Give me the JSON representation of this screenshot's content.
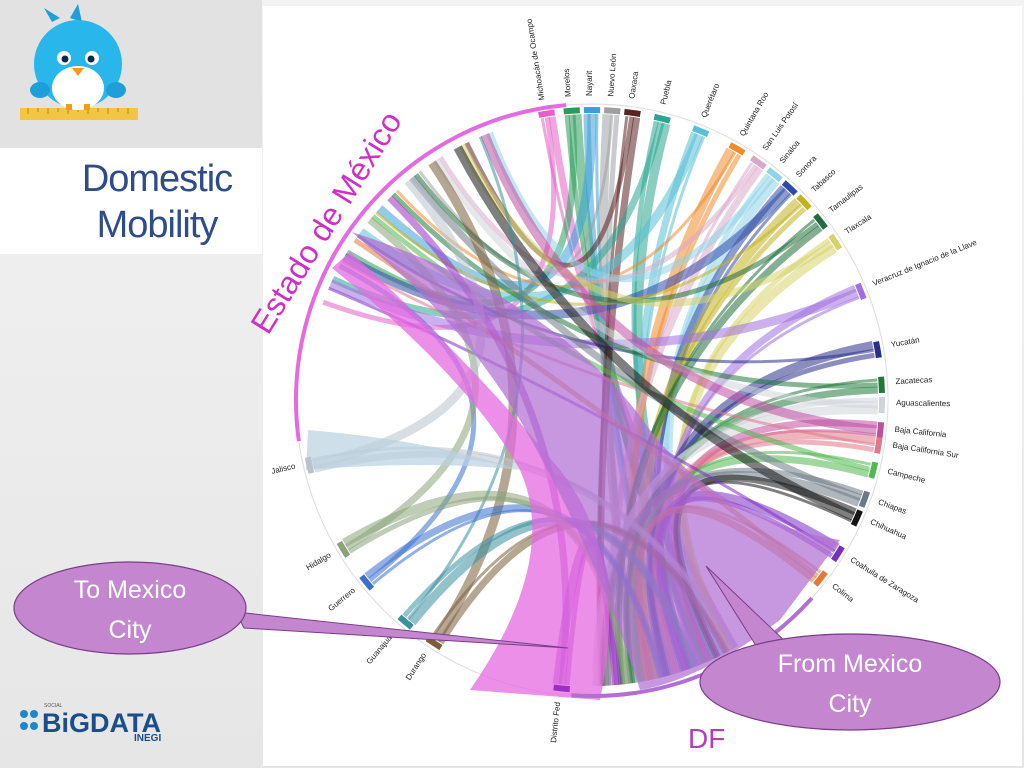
{
  "slide": {
    "title_line1": "Domestic",
    "title_line2": "Mobility"
  },
  "diagram": {
    "big_labels": {
      "estado": "Estado de México",
      "df": "DF"
    },
    "arc_labels": [
      "Michoacán de Ocampo",
      "Morelos",
      "Nayarit",
      "Nuevo León",
      "Oaxaca",
      "Puebla",
      "Querétaro",
      "Quintana Roo",
      "San Luis Potosí",
      "Sinaloa",
      "Sonora",
      "Tabasco",
      "Tamaulipas",
      "Tlaxcala",
      "Veracruz de Ignacio de la Llave",
      "Yucatán",
      "Zacatecas",
      "Aguascalientes",
      "Baja California",
      "Baja California Sur",
      "Campeche",
      "Chiapas",
      "Chihuahua",
      "Coahuila de Zaragoza",
      "Colima",
      "Distrito Fed",
      "Durango",
      "Guanajuato",
      "Guerrero",
      "Hidalgo",
      "Jalisco"
    ],
    "colors": {
      "estado": "#e46ae0",
      "df": "#b26fd3",
      "accent": "#9b2ec4"
    }
  },
  "callouts": {
    "to": {
      "line1": "To Mexico",
      "line2": "City"
    },
    "from": {
      "line1": "From Mexico",
      "line2": "City"
    }
  },
  "branding": {
    "logo_word": "BiGDATA",
    "logo_small_top": "SOCIAL",
    "logo_small_bottom": "INEGI"
  }
}
